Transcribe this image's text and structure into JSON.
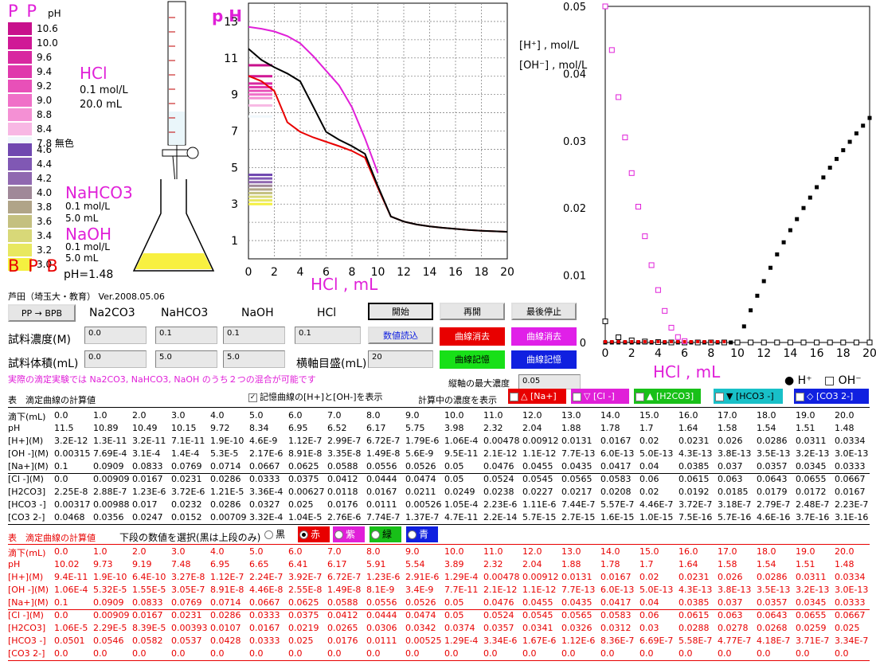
{
  "indicator": {
    "top_label": "P P",
    "ph_unit": "pH",
    "bottom_label": "B P B",
    "pp_scale": [
      {
        "value": "10.6",
        "color": "#c8108c"
      },
      {
        "value": "10.0",
        "color": "#d01896"
      },
      {
        "value": "9.6",
        "color": "#d828a0"
      },
      {
        "value": "9.4",
        "color": "#e038ac"
      },
      {
        "value": "9.2",
        "color": "#e850b8"
      },
      {
        "value": "9.0",
        "color": "#f070c8"
      },
      {
        "value": "8.8",
        "color": "#f490d4"
      },
      {
        "value": "8.4",
        "color": "#f8b8e4"
      },
      {
        "value": "7.8 無色",
        "color": "#f0f8fc"
      }
    ],
    "bpb_scale": [
      {
        "value": "4.6",
        "color": "#7048b0"
      },
      {
        "value": "4.4",
        "color": "#8058b4"
      },
      {
        "value": "4.2",
        "color": "#9068b0"
      },
      {
        "value": "4.0",
        "color": "#a08898"
      },
      {
        "value": "3.8",
        "color": "#b0a488"
      },
      {
        "value": "3.6",
        "color": "#c4c080"
      },
      {
        "value": "3.4",
        "color": "#d8d878"
      },
      {
        "value": "3.2",
        "color": "#e8e860"
      },
      {
        "value": "3.0",
        "color": "#f4f040"
      }
    ]
  },
  "titrant": {
    "name": "HCl",
    "conc": "0.1 mol/L",
    "volume": "20.0 mL"
  },
  "analytes": [
    {
      "name": "NaHCO3",
      "conc": "0.1 mol/L",
      "volume": "5.0 mL"
    },
    {
      "name": "NaOH",
      "conc": "0.1 mol/L",
      "volume": "5.0 mL"
    }
  ],
  "ph_readout": "pH=1.48",
  "author": "芦田（埼玉大・教育）  Ver.2008.05.06",
  "controls": {
    "pp_bpb_label": "PP → BPB",
    "columns": [
      "Na2CO3",
      "NaHCO3",
      "NaOH",
      "HCl"
    ],
    "conc_label": "試料濃度(M)",
    "vol_label": "試料体積(mL)",
    "conc_values": [
      "0.0",
      "0.1",
      "0.1",
      "0.1"
    ],
    "vol_values": [
      "0.0",
      "5.0",
      "5.0"
    ],
    "axis_scale_label": "横軸目盛(mL)",
    "axis_scale_value": "20",
    "start": "開始",
    "restart": "再開",
    "final_stop": "最後停止",
    "read_values": "数値読込",
    "erase_red": "曲線消去",
    "erase_magenta": "曲線消去",
    "store_green": "曲線記憶",
    "store_blue": "曲線記憶",
    "note": "実際の滴定実験では Na2CO3, NaHCO3, NaOH のうち２つの混合が可能です",
    "max_conc_label": "縦軸の最大濃度",
    "max_conc_value": "0.05"
  },
  "ph_chart": {
    "ylabel": "p H",
    "xlabel": "HCl , mL",
    "xticks": [
      "0",
      "2",
      "4",
      "6",
      "8",
      "10",
      "12",
      "14",
      "16",
      "18",
      "20"
    ],
    "yticks": [
      "1",
      "3",
      "5",
      "7",
      "9",
      "11",
      "13"
    ]
  },
  "conc_chart": {
    "ylabel1": "[H⁺] , mol/L",
    "ylabel2": "[OH⁻] , mol/L",
    "xlabel": "HCl , mL",
    "xticks": [
      "0",
      "2",
      "4",
      "6",
      "8",
      "10",
      "12",
      "14",
      "16",
      "18",
      "20"
    ],
    "yticks": [
      "0",
      "0.01",
      "0.02",
      "0.03",
      "0.04",
      "0.05"
    ],
    "legend_h": "● H⁺",
    "legend_oh": "□ OH⁻"
  },
  "chart_data": [
    {
      "type": "line",
      "title": "",
      "xlabel": "HCl , mL",
      "ylabel": "p H",
      "xlim": [
        0,
        20
      ],
      "ylim": [
        0,
        14
      ],
      "series": [
        {
          "color": "#000000",
          "x": [
            0,
            1,
            2,
            3,
            4,
            5,
            6,
            7,
            8,
            9,
            10,
            11,
            12,
            13,
            14,
            15,
            16,
            17,
            18,
            19,
            20
          ],
          "y": [
            11.5,
            10.89,
            10.49,
            10.15,
            9.72,
            8.34,
            6.95,
            6.52,
            6.17,
            5.75,
            3.98,
            2.32,
            2.04,
            1.88,
            1.78,
            1.7,
            1.64,
            1.58,
            1.54,
            1.51,
            1.48
          ]
        },
        {
          "color": "#e80000",
          "x": [
            0,
            1,
            2,
            3,
            4,
            5,
            6,
            7,
            8,
            9,
            10,
            11,
            12,
            13,
            14,
            15,
            16,
            17,
            18,
            19,
            20
          ],
          "y": [
            10.02,
            9.73,
            9.19,
            7.48,
            6.95,
            6.65,
            6.41,
            6.17,
            5.91,
            5.54,
            3.89,
            2.32,
            2.04,
            1.88,
            1.78,
            1.7,
            1.64,
            1.58,
            1.54,
            1.51,
            1.48
          ]
        },
        {
          "color": "#e020d8",
          "x": [
            0,
            1,
            2,
            3,
            4,
            5,
            6,
            7,
            8,
            9,
            10
          ],
          "y": [
            12.7,
            12.6,
            12.45,
            12.2,
            11.8,
            11.1,
            10.3,
            9.5,
            8.3,
            6.6,
            4.7
          ]
        }
      ]
    },
    {
      "type": "scatter",
      "title": "",
      "xlabel": "HCl , mL",
      "ylabel": "[H⁺] , mol/L / [OH⁻] , mol/L",
      "xlim": [
        0,
        20
      ],
      "ylim": [
        0,
        0.05
      ],
      "series": [
        {
          "name": "H⁺",
          "x": [
            0,
            1,
            2,
            3,
            4,
            5,
            6,
            7,
            8,
            9,
            10,
            11,
            12,
            13,
            14,
            15,
            16,
            17,
            18,
            19,
            20
          ],
          "y": [
            0,
            0,
            0,
            0,
            0,
            0,
            0,
            0,
            0,
            0,
            0,
            0.00478,
            0.00912,
            0.0131,
            0.0167,
            0.02,
            0.0231,
            0.026,
            0.0286,
            0.0311,
            0.0334
          ]
        },
        {
          "name": "OH⁻",
          "x": [
            0,
            1,
            2,
            3,
            4,
            5,
            6,
            7,
            8,
            9,
            10,
            11,
            12,
            13,
            14,
            15,
            16,
            17,
            18,
            19,
            20
          ],
          "y": [
            0.00315,
            0.000769,
            0.00031,
            0.00014,
            5.3e-05,
            0,
            0,
            0,
            0,
            0,
            0,
            0,
            0,
            0,
            0,
            0,
            0,
            0,
            0,
            0,
            0
          ]
        },
        {
          "name": "OH⁻ (stored)",
          "x": [
            0,
            0.5,
            1,
            1.5,
            2,
            2.5,
            3,
            3.5,
            4,
            4.5,
            5,
            5.5,
            6
          ],
          "y": [
            0.05,
            0.0435,
            0.0365,
            0.0305,
            0.0252,
            0.0202,
            0.0158,
            0.0115,
            0.0078,
            0.0047,
            0.0022,
            0.0008,
            0.0002
          ]
        }
      ]
    }
  ],
  "table1": {
    "title": "表　滴定曲線の計算値",
    "show_conc_checkbox": "記憶曲線の[H+]と[OH-]を表示",
    "show_conc_label": "計算中の濃度を表示",
    "conc_toggles": [
      {
        "label": "△ [Na+]",
        "color": "#e80000"
      },
      {
        "label": "▽ [Cl -]",
        "color": "#e020d8"
      },
      {
        "label": "▲ [H2CO3]",
        "color": "#18c018"
      },
      {
        "label": "▼ [HCO3 -]",
        "color": "#18c0c8"
      },
      {
        "label": "◇ [CO3 2-]",
        "color": "#1020e0"
      }
    ],
    "rows": [
      [
        "滴下(mL)",
        "0.0",
        "1.0",
        "2.0",
        "3.0",
        "4.0",
        "5.0",
        "6.0",
        "7.0",
        "8.0",
        "9.0",
        "10.0",
        "11.0",
        "12.0",
        "13.0",
        "14.0",
        "15.0",
        "16.0",
        "17.0",
        "18.0",
        "19.0",
        "20.0"
      ],
      [
        "pH",
        "11.5",
        "10.89",
        "10.49",
        "10.15",
        "9.72",
        "8.34",
        "6.95",
        "6.52",
        "6.17",
        "5.75",
        "3.98",
        "2.32",
        "2.04",
        "1.88",
        "1.78",
        "1.7",
        "1.64",
        "1.58",
        "1.54",
        "1.51",
        "1.48"
      ],
      [
        "[H+](M)",
        "3.2E-12",
        "1.3E-11",
        "3.2E-11",
        "7.1E-11",
        "1.9E-10",
        "4.6E-9",
        "1.12E-7",
        "2.99E-7",
        "6.72E-7",
        "1.79E-6",
        "1.06E-4",
        "0.00478",
        "0.00912",
        "0.0131",
        "0.0167",
        "0.02",
        "0.0231",
        "0.026",
        "0.0286",
        "0.0311",
        "0.0334"
      ],
      [
        "[OH -](M)",
        "0.00315",
        "7.69E-4",
        "3.1E-4",
        "1.4E-4",
        "5.3E-5",
        "2.17E-6",
        "8.91E-8",
        "3.35E-8",
        "1.49E-8",
        "5.6E-9",
        "9.5E-11",
        "2.1E-12",
        "1.1E-12",
        "7.7E-13",
        "6.0E-13",
        "5.0E-13",
        "4.3E-13",
        "3.8E-13",
        "3.5E-13",
        "3.2E-13",
        "3.0E-13"
      ],
      [
        "[Na+](M)",
        "0.1",
        "0.0909",
        "0.0833",
        "0.0769",
        "0.0714",
        "0.0667",
        "0.0625",
        "0.0588",
        "0.0556",
        "0.0526",
        "0.05",
        "0.0476",
        "0.0455",
        "0.0435",
        "0.0417",
        "0.04",
        "0.0385",
        "0.037",
        "0.0357",
        "0.0345",
        "0.0333"
      ],
      [
        "[Cl -](M)",
        "0.0",
        "0.00909",
        "0.0167",
        "0.0231",
        "0.0286",
        "0.0333",
        "0.0375",
        "0.0412",
        "0.0444",
        "0.0474",
        "0.05",
        "0.0524",
        "0.0545",
        "0.0565",
        "0.0583",
        "0.06",
        "0.0615",
        "0.063",
        "0.0643",
        "0.0655",
        "0.0667"
      ],
      [
        "[H2CO3]",
        "2.25E-8",
        "2.88E-7",
        "1.23E-6",
        "3.72E-6",
        "1.21E-5",
        "3.36E-4",
        "0.00627",
        "0.0118",
        "0.0167",
        "0.0211",
        "0.0249",
        "0.0238",
        "0.0227",
        "0.0217",
        "0.0208",
        "0.02",
        "0.0192",
        "0.0185",
        "0.0179",
        "0.0172",
        "0.0167"
      ],
      [
        "[HCO3 -]",
        "0.00317",
        "0.00988",
        "0.017",
        "0.0232",
        "0.0286",
        "0.0327",
        "0.025",
        "0.0176",
        "0.0111",
        "0.00526",
        "1.05E-4",
        "2.23E-6",
        "1.11E-6",
        "7.44E-7",
        "5.57E-7",
        "4.46E-7",
        "3.72E-7",
        "3.18E-7",
        "2.79E-7",
        "2.48E-7",
        "2.23E-7"
      ],
      [
        "[CO3 2-]",
        "0.0468",
        "0.0356",
        "0.0247",
        "0.0152",
        "0.00709",
        "3.32E-4",
        "1.04E-5",
        "2.76E-6",
        "7.74E-7",
        "1.37E-7",
        "4.7E-11",
        "2.2E-14",
        "5.7E-15",
        "2.7E-15",
        "1.6E-15",
        "1.0E-15",
        "7.5E-16",
        "5.7E-16",
        "4.6E-16",
        "3.7E-16",
        "3.1E-16"
      ]
    ]
  },
  "table2": {
    "title": "表　滴定曲線の計算値",
    "select_label": "下段の数値を選択(黒は上段のみ)",
    "radios": [
      {
        "label": "黒",
        "color": "#ffffff",
        "text": "#000000",
        "selected": false
      },
      {
        "label": "赤",
        "color": "#e80000",
        "text": "#ffffff",
        "selected": true
      },
      {
        "label": "紫",
        "color": "#e020d8",
        "text": "#ffffff",
        "selected": false
      },
      {
        "label": "緑",
        "color": "#18c018",
        "text": "#000000",
        "selected": false
      },
      {
        "label": "青",
        "color": "#1020e0",
        "text": "#ffffff",
        "selected": false
      }
    ],
    "rows": [
      [
        "滴下(mL)",
        "0.0",
        "1.0",
        "2.0",
        "3.0",
        "4.0",
        "5.0",
        "6.0",
        "7.0",
        "8.0",
        "9.0",
        "10.0",
        "11.0",
        "12.0",
        "13.0",
        "14.0",
        "15.0",
        "16.0",
        "17.0",
        "18.0",
        "19.0",
        "20.0"
      ],
      [
        "pH",
        "10.02",
        "9.73",
        "9.19",
        "7.48",
        "6.95",
        "6.65",
        "6.41",
        "6.17",
        "5.91",
        "5.54",
        "3.89",
        "2.32",
        "2.04",
        "1.88",
        "1.78",
        "1.7",
        "1.64",
        "1.58",
        "1.54",
        "1.51",
        "1.48"
      ],
      [
        "[H+](M)",
        "9.4E-11",
        "1.9E-10",
        "6.4E-10",
        "3.27E-8",
        "1.12E-7",
        "2.24E-7",
        "3.92E-7",
        "6.72E-7",
        "1.23E-6",
        "2.91E-6",
        "1.29E-4",
        "0.00478",
        "0.00912",
        "0.0131",
        "0.0167",
        "0.02",
        "0.0231",
        "0.026",
        "0.0286",
        "0.0311",
        "0.0334"
      ],
      [
        "[OH -](M)",
        "1.06E-4",
        "5.32E-5",
        "1.55E-5",
        "3.05E-7",
        "8.91E-8",
        "4.46E-8",
        "2.55E-8",
        "1.49E-8",
        "8.1E-9",
        "3.4E-9",
        "7.7E-11",
        "2.1E-12",
        "1.1E-12",
        "7.7E-13",
        "6.0E-13",
        "5.0E-13",
        "4.3E-13",
        "3.8E-13",
        "3.5E-13",
        "3.2E-13",
        "3.0E-13"
      ],
      [
        "[Na+](M)",
        "0.1",
        "0.0909",
        "0.0833",
        "0.0769",
        "0.0714",
        "0.0667",
        "0.0625",
        "0.0588",
        "0.0556",
        "0.0526",
        "0.05",
        "0.0476",
        "0.0455",
        "0.0435",
        "0.0417",
        "0.04",
        "0.0385",
        "0.037",
        "0.0357",
        "0.0345",
        "0.0333"
      ],
      [
        "[Cl -](M)",
        "0.0",
        "0.00909",
        "0.0167",
        "0.0231",
        "0.0286",
        "0.0333",
        "0.0375",
        "0.0412",
        "0.0444",
        "0.0474",
        "0.05",
        "0.0524",
        "0.0545",
        "0.0565",
        "0.0583",
        "0.06",
        "0.0615",
        "0.063",
        "0.0643",
        "0.0655",
        "0.0667"
      ],
      [
        "[H2CO3]",
        "1.06E-5",
        "2.29E-5",
        "8.39E-5",
        "0.00393",
        "0.0107",
        "0.0167",
        "0.0219",
        "0.0265",
        "0.0306",
        "0.0342",
        "0.0374",
        "0.0357",
        "0.0341",
        "0.0326",
        "0.0312",
        "0.03",
        "0.0288",
        "0.0278",
        "0.0268",
        "0.0259",
        "0.025"
      ],
      [
        "[HCO3 -]",
        "0.0501",
        "0.0546",
        "0.0582",
        "0.0537",
        "0.0428",
        "0.0333",
        "0.025",
        "0.0176",
        "0.0111",
        "0.00525",
        "1.29E-4",
        "3.34E-6",
        "1.67E-6",
        "1.12E-6",
        "8.36E-7",
        "6.69E-7",
        "5.58E-7",
        "4.77E-7",
        "4.18E-7",
        "3.71E-7",
        "3.34E-7"
      ],
      [
        "[CO3 2-]",
        "0.0",
        "0.0",
        "0.0",
        "0.0",
        "0.0",
        "0.0",
        "0.0",
        "0.0",
        "0.0",
        "0.0",
        "0.0",
        "0.0",
        "0.0",
        "0.0",
        "0.0",
        "0.0",
        "0.0",
        "0.0",
        "0.0",
        "0.0",
        "0.0"
      ]
    ]
  }
}
